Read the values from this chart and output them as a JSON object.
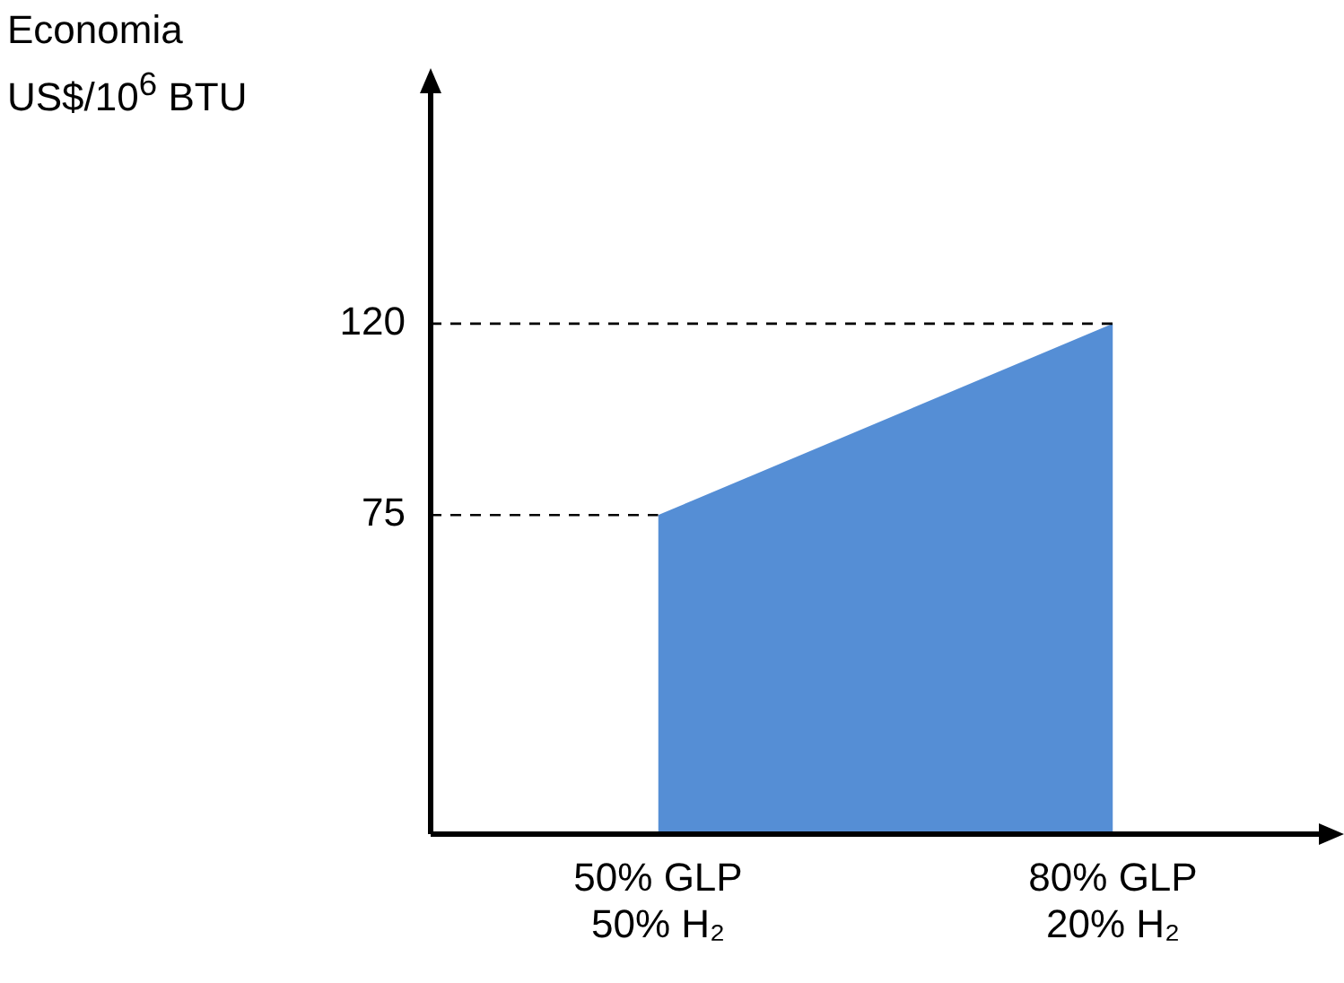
{
  "chart_data": {
    "type": "area",
    "ylabel": "Economia\nUS$/10$^{6}$ BTU",
    "categories": [
      "50% GLP\n50% H₂",
      "80% GLP\n20% H₂"
    ],
    "series": [
      {
        "color": "#558ed5",
        "values": [
          75,
          120
        ]
      }
    ],
    "ylim": [
      0,
      175
    ],
    "yticks": [
      75,
      120
    ],
    "grid": false,
    "legend": false,
    "ref_lines": [
      {
        "axis": "y",
        "value": 75,
        "line_style": "dashed",
        "color": "#000000"
      },
      {
        "axis": "y",
        "value": 120,
        "line_style": "dashed",
        "color": "#000000"
      }
    ]
  }
}
